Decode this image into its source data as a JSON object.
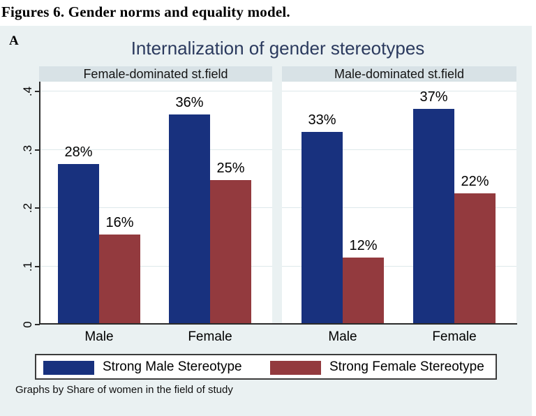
{
  "figure": {
    "caption": "Figures 6. Gender norms and equality model.",
    "panel_letter": "A"
  },
  "chart_data": {
    "type": "bar",
    "title": "Internalization of gender stereotypes",
    "note": "Graphs by Share of women in the field of study",
    "xlabel": "",
    "ylabel": "",
    "ylim": [
      0,
      0.4
    ],
    "yticks": {
      "labels": [
        "0",
        ".1",
        ".2",
        ".3",
        ".4"
      ],
      "values": [
        0,
        0.1,
        0.2,
        0.3,
        0.4
      ]
    },
    "grid": true,
    "grid_values": [
      0.1,
      0.2,
      0.3,
      0.4
    ],
    "legend_position": "bottom",
    "legend": [
      {
        "label": "Strong Male Stereotype",
        "color": "#18317e"
      },
      {
        "label": "Strong Female Stereotype",
        "color": "#933a3e"
      }
    ],
    "panels": [
      {
        "title": "Female-dominated st.field",
        "categories": [
          "Male",
          "Female"
        ],
        "series": [
          {
            "name": "Strong Male Stereotype",
            "color": "#18317e",
            "values": [
              0.275,
              0.36
            ],
            "data_labels": [
              "28%",
              "36%"
            ]
          },
          {
            "name": "Strong Female Stereotype",
            "color": "#933a3e",
            "values": [
              0.155,
              0.248
            ],
            "data_labels": [
              "16%",
              "25%"
            ]
          }
        ]
      },
      {
        "title": "Male-dominated st.field",
        "categories": [
          "Male",
          "Female"
        ],
        "series": [
          {
            "name": "Strong Male Stereotype",
            "color": "#18317e",
            "values": [
              0.33,
              0.37
            ],
            "data_labels": [
              "33%",
              "37%"
            ]
          },
          {
            "name": "Strong Female Stereotype",
            "color": "#933a3e",
            "values": [
              0.115,
              0.225
            ],
            "data_labels": [
              "12%",
              "22%"
            ]
          }
        ]
      }
    ]
  }
}
